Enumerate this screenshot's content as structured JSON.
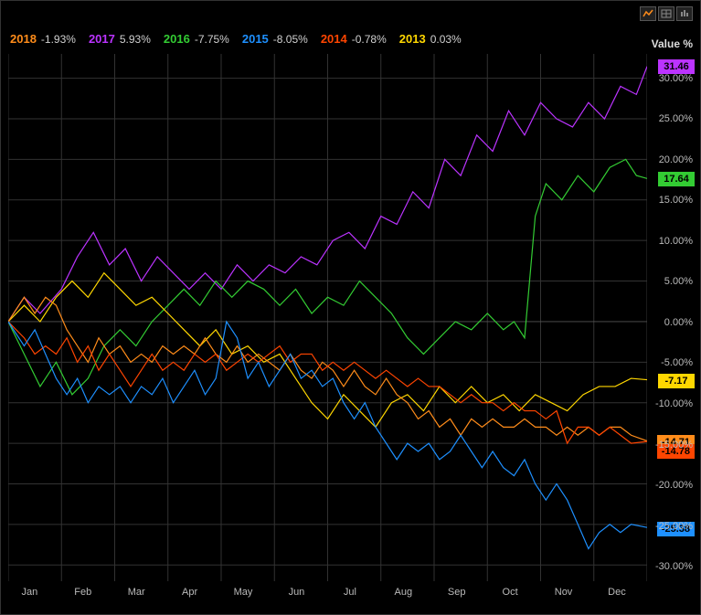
{
  "background_color": "#000000",
  "grid_color": "#333333",
  "grid_zero_color": "#555555",
  "text_color": "#cccccc",
  "axis_title": "Value %",
  "toolbar": {
    "icons": [
      "chart-line-icon",
      "chart-grid-icon",
      "chart-candle-icon"
    ]
  },
  "legend": [
    {
      "year": "2018",
      "value": "-1.93%",
      "color": "#ff8c1a"
    },
    {
      "year": "2017",
      "value": "5.93%",
      "color": "#bb33ff"
    },
    {
      "year": "2016",
      "value": "-7.75%",
      "color": "#33cc33"
    },
    {
      "year": "2015",
      "value": "-8.05%",
      "color": "#1e90ff"
    },
    {
      "year": "2014",
      "value": "-0.78%",
      "color": "#ff4500"
    },
    {
      "year": "2013",
      "value": "0.03%",
      "color": "#ffd700"
    }
  ],
  "x_axis": {
    "labels": [
      "Jan",
      "Feb",
      "Mar",
      "Apr",
      "May",
      "Jun",
      "Jul",
      "Aug",
      "Sep",
      "Oct",
      "Nov",
      "Dec"
    ]
  },
  "y_axis": {
    "min": -32,
    "max": 33,
    "ticks": [
      -30,
      -25,
      -20,
      -15,
      -10,
      -5,
      0,
      5,
      10,
      15,
      20,
      25,
      30
    ],
    "tick_labels": [
      "-30.00%",
      "-25.00%",
      "-20.00%",
      "-15.00%",
      "-10.00%",
      "-5.00%",
      "0.00%",
      "5.00%",
      "10.00%",
      "15.00%",
      "20.00%",
      "25.00%",
      "30.00%"
    ]
  },
  "end_badges": [
    {
      "value": "31.46",
      "y": 31.46,
      "bg": "#bb33ff",
      "fg": "#000000"
    },
    {
      "value": "17.64",
      "y": 17.64,
      "bg": "#33cc33",
      "fg": "#000000"
    },
    {
      "value": "-7.17",
      "y": -7.17,
      "bg": "#ffd700",
      "fg": "#000000"
    },
    {
      "value": "-14.71",
      "y": -14.71,
      "bg": "#ff8c1a",
      "fg": "#000000"
    },
    {
      "value": "-14.78",
      "y": -15.8,
      "bg": "#ff4500",
      "fg": "#000000"
    },
    {
      "value": "-25.38",
      "y": -25.38,
      "bg": "#1e90ff",
      "fg": "#000000"
    }
  ],
  "series": [
    {
      "name": "2017",
      "color": "#bb33ff",
      "points": [
        [
          0,
          0
        ],
        [
          0.3,
          3
        ],
        [
          0.6,
          1
        ],
        [
          1,
          4
        ],
        [
          1.3,
          8
        ],
        [
          1.6,
          11
        ],
        [
          1.9,
          7
        ],
        [
          2.2,
          9
        ],
        [
          2.5,
          5
        ],
        [
          2.8,
          8
        ],
        [
          3.1,
          6
        ],
        [
          3.4,
          4
        ],
        [
          3.7,
          6
        ],
        [
          4,
          4
        ],
        [
          4.3,
          7
        ],
        [
          4.6,
          5
        ],
        [
          4.9,
          7
        ],
        [
          5.2,
          6
        ],
        [
          5.5,
          8
        ],
        [
          5.8,
          7
        ],
        [
          6.1,
          10
        ],
        [
          6.4,
          11
        ],
        [
          6.7,
          9
        ],
        [
          7,
          13
        ],
        [
          7.3,
          12
        ],
        [
          7.6,
          16
        ],
        [
          7.9,
          14
        ],
        [
          8.2,
          20
        ],
        [
          8.5,
          18
        ],
        [
          8.8,
          23
        ],
        [
          9.1,
          21
        ],
        [
          9.4,
          26
        ],
        [
          9.7,
          23
        ],
        [
          10,
          27
        ],
        [
          10.3,
          25
        ],
        [
          10.6,
          24
        ],
        [
          10.9,
          27
        ],
        [
          11.2,
          25
        ],
        [
          11.5,
          29
        ],
        [
          11.8,
          28
        ],
        [
          12,
          31.46
        ]
      ]
    },
    {
      "name": "2016",
      "color": "#33cc33",
      "points": [
        [
          0,
          0
        ],
        [
          0.3,
          -4
        ],
        [
          0.6,
          -8
        ],
        [
          0.9,
          -5
        ],
        [
          1.2,
          -9
        ],
        [
          1.5,
          -7
        ],
        [
          1.8,
          -3
        ],
        [
          2.1,
          -1
        ],
        [
          2.4,
          -3
        ],
        [
          2.7,
          0
        ],
        [
          3,
          2
        ],
        [
          3.3,
          4
        ],
        [
          3.6,
          2
        ],
        [
          3.9,
          5
        ],
        [
          4.2,
          3
        ],
        [
          4.5,
          5
        ],
        [
          4.8,
          4
        ],
        [
          5.1,
          2
        ],
        [
          5.4,
          4
        ],
        [
          5.7,
          1
        ],
        [
          6,
          3
        ],
        [
          6.3,
          2
        ],
        [
          6.6,
          5
        ],
        [
          6.9,
          3
        ],
        [
          7.2,
          1
        ],
        [
          7.5,
          -2
        ],
        [
          7.8,
          -4
        ],
        [
          8.1,
          -2
        ],
        [
          8.4,
          0
        ],
        [
          8.7,
          -1
        ],
        [
          9,
          1
        ],
        [
          9.3,
          -1
        ],
        [
          9.5,
          0
        ],
        [
          9.7,
          -2
        ],
        [
          9.9,
          13
        ],
        [
          10.1,
          17
        ],
        [
          10.4,
          15
        ],
        [
          10.7,
          18
        ],
        [
          11,
          16
        ],
        [
          11.3,
          19
        ],
        [
          11.6,
          20
        ],
        [
          11.8,
          18
        ],
        [
          12,
          17.64
        ]
      ]
    },
    {
      "name": "2013",
      "color": "#ffd700",
      "points": [
        [
          0,
          0
        ],
        [
          0.3,
          2
        ],
        [
          0.6,
          0
        ],
        [
          0.9,
          3
        ],
        [
          1.2,
          5
        ],
        [
          1.5,
          3
        ],
        [
          1.8,
          6
        ],
        [
          2.1,
          4
        ],
        [
          2.4,
          2
        ],
        [
          2.7,
          3
        ],
        [
          3,
          1
        ],
        [
          3.3,
          -1
        ],
        [
          3.6,
          -3
        ],
        [
          3.9,
          -1
        ],
        [
          4.2,
          -4
        ],
        [
          4.5,
          -3
        ],
        [
          4.8,
          -5
        ],
        [
          5.1,
          -4
        ],
        [
          5.4,
          -7
        ],
        [
          5.7,
          -10
        ],
        [
          6,
          -12
        ],
        [
          6.3,
          -9
        ],
        [
          6.6,
          -11
        ],
        [
          6.9,
          -13
        ],
        [
          7.2,
          -10
        ],
        [
          7.5,
          -9
        ],
        [
          7.8,
          -11
        ],
        [
          8.1,
          -8
        ],
        [
          8.4,
          -10
        ],
        [
          8.7,
          -8
        ],
        [
          9,
          -10
        ],
        [
          9.3,
          -9
        ],
        [
          9.6,
          -11
        ],
        [
          9.9,
          -9
        ],
        [
          10.2,
          -10
        ],
        [
          10.5,
          -11
        ],
        [
          10.8,
          -9
        ],
        [
          11.1,
          -8
        ],
        [
          11.4,
          -8
        ],
        [
          11.7,
          -7
        ],
        [
          12,
          -7.17
        ]
      ]
    },
    {
      "name": "2018",
      "color": "#ff8c1a",
      "points": [
        [
          0,
          0
        ],
        [
          0.3,
          3
        ],
        [
          0.5,
          1
        ],
        [
          0.7,
          3
        ],
        [
          0.9,
          2
        ],
        [
          1.1,
          -1
        ],
        [
          1.3,
          -3
        ],
        [
          1.5,
          -5
        ],
        [
          1.7,
          -2
        ],
        [
          1.9,
          -4
        ],
        [
          2.1,
          -3
        ],
        [
          2.3,
          -5
        ],
        [
          2.5,
          -4
        ],
        [
          2.7,
          -5
        ],
        [
          2.9,
          -3
        ],
        [
          3.1,
          -4
        ],
        [
          3.3,
          -3
        ],
        [
          3.5,
          -4
        ],
        [
          3.7,
          -2
        ],
        [
          3.9,
          -4
        ],
        [
          4.1,
          -5
        ],
        [
          4.3,
          -3
        ],
        [
          4.5,
          -5
        ],
        [
          4.7,
          -4
        ],
        [
          4.9,
          -5
        ],
        [
          5.1,
          -6
        ],
        [
          5.3,
          -4
        ],
        [
          5.5,
          -6
        ],
        [
          5.7,
          -7
        ],
        [
          5.9,
          -5
        ],
        [
          6.1,
          -6
        ],
        [
          6.3,
          -8
        ],
        [
          6.5,
          -6
        ],
        [
          6.7,
          -8
        ],
        [
          6.9,
          -9
        ],
        [
          7.1,
          -7
        ],
        [
          7.3,
          -9
        ],
        [
          7.5,
          -10
        ],
        [
          7.7,
          -12
        ],
        [
          7.9,
          -11
        ],
        [
          8.1,
          -13
        ],
        [
          8.3,
          -12
        ],
        [
          8.5,
          -14
        ],
        [
          8.7,
          -12
        ],
        [
          8.9,
          -13
        ],
        [
          9.1,
          -12
        ],
        [
          9.3,
          -13
        ],
        [
          9.5,
          -13
        ],
        [
          9.7,
          -12
        ],
        [
          9.9,
          -13
        ],
        [
          10.1,
          -13
        ],
        [
          10.3,
          -14
        ],
        [
          10.5,
          -13
        ],
        [
          10.7,
          -14
        ],
        [
          10.9,
          -13
        ],
        [
          11.1,
          -14
        ],
        [
          11.3,
          -13
        ],
        [
          11.5,
          -13
        ],
        [
          11.7,
          -14
        ],
        [
          12,
          -14.71
        ]
      ]
    },
    {
      "name": "2014",
      "color": "#ff4500",
      "points": [
        [
          0,
          0
        ],
        [
          0.3,
          -2
        ],
        [
          0.5,
          -4
        ],
        [
          0.7,
          -3
        ],
        [
          0.9,
          -4
        ],
        [
          1.1,
          -2
        ],
        [
          1.3,
          -5
        ],
        [
          1.5,
          -3
        ],
        [
          1.7,
          -6
        ],
        [
          1.9,
          -4
        ],
        [
          2.1,
          -6
        ],
        [
          2.3,
          -8
        ],
        [
          2.5,
          -6
        ],
        [
          2.7,
          -4
        ],
        [
          2.9,
          -6
        ],
        [
          3.1,
          -5
        ],
        [
          3.3,
          -6
        ],
        [
          3.5,
          -4
        ],
        [
          3.7,
          -5
        ],
        [
          3.9,
          -4
        ],
        [
          4.1,
          -6
        ],
        [
          4.3,
          -5
        ],
        [
          4.5,
          -4
        ],
        [
          4.7,
          -5
        ],
        [
          4.9,
          -4
        ],
        [
          5.1,
          -3
        ],
        [
          5.3,
          -5
        ],
        [
          5.5,
          -4
        ],
        [
          5.7,
          -4
        ],
        [
          5.9,
          -6
        ],
        [
          6.1,
          -5
        ],
        [
          6.3,
          -6
        ],
        [
          6.5,
          -5
        ],
        [
          6.7,
          -6
        ],
        [
          6.9,
          -7
        ],
        [
          7.1,
          -6
        ],
        [
          7.3,
          -7
        ],
        [
          7.5,
          -8
        ],
        [
          7.7,
          -7
        ],
        [
          7.9,
          -8
        ],
        [
          8.1,
          -8
        ],
        [
          8.3,
          -9
        ],
        [
          8.5,
          -10
        ],
        [
          8.7,
          -9
        ],
        [
          8.9,
          -10
        ],
        [
          9.1,
          -10
        ],
        [
          9.3,
          -11
        ],
        [
          9.5,
          -10
        ],
        [
          9.7,
          -11
        ],
        [
          9.9,
          -11
        ],
        [
          10.1,
          -12
        ],
        [
          10.3,
          -11
        ],
        [
          10.5,
          -15
        ],
        [
          10.7,
          -13
        ],
        [
          10.9,
          -13
        ],
        [
          11.1,
          -14
        ],
        [
          11.3,
          -13
        ],
        [
          11.5,
          -14
        ],
        [
          11.7,
          -15
        ],
        [
          12,
          -14.78
        ]
      ]
    },
    {
      "name": "2015",
      "color": "#1e90ff",
      "points": [
        [
          0,
          0
        ],
        [
          0.3,
          -3
        ],
        [
          0.5,
          -1
        ],
        [
          0.7,
          -4
        ],
        [
          0.9,
          -7
        ],
        [
          1.1,
          -9
        ],
        [
          1.3,
          -7
        ],
        [
          1.5,
          -10
        ],
        [
          1.7,
          -8
        ],
        [
          1.9,
          -9
        ],
        [
          2.1,
          -8
        ],
        [
          2.3,
          -10
        ],
        [
          2.5,
          -8
        ],
        [
          2.7,
          -9
        ],
        [
          2.9,
          -7
        ],
        [
          3.1,
          -10
        ],
        [
          3.3,
          -8
        ],
        [
          3.5,
          -6
        ],
        [
          3.7,
          -9
        ],
        [
          3.9,
          -7
        ],
        [
          4.1,
          0
        ],
        [
          4.3,
          -2
        ],
        [
          4.5,
          -7
        ],
        [
          4.7,
          -5
        ],
        [
          4.9,
          -8
        ],
        [
          5.1,
          -6
        ],
        [
          5.3,
          -4
        ],
        [
          5.5,
          -7
        ],
        [
          5.7,
          -6
        ],
        [
          5.9,
          -8
        ],
        [
          6.1,
          -7
        ],
        [
          6.3,
          -10
        ],
        [
          6.5,
          -12
        ],
        [
          6.7,
          -10
        ],
        [
          6.9,
          -13
        ],
        [
          7.1,
          -15
        ],
        [
          7.3,
          -17
        ],
        [
          7.5,
          -15
        ],
        [
          7.7,
          -16
        ],
        [
          7.9,
          -15
        ],
        [
          8.1,
          -17
        ],
        [
          8.3,
          -16
        ],
        [
          8.5,
          -14
        ],
        [
          8.7,
          -16
        ],
        [
          8.9,
          -18
        ],
        [
          9.1,
          -16
        ],
        [
          9.3,
          -18
        ],
        [
          9.5,
          -19
        ],
        [
          9.7,
          -17
        ],
        [
          9.9,
          -20
        ],
        [
          10.1,
          -22
        ],
        [
          10.3,
          -20
        ],
        [
          10.5,
          -22
        ],
        [
          10.7,
          -25
        ],
        [
          10.9,
          -28
        ],
        [
          11.1,
          -26
        ],
        [
          11.3,
          -25
        ],
        [
          11.5,
          -26
        ],
        [
          11.7,
          -25
        ],
        [
          12,
          -25.38
        ]
      ]
    }
  ]
}
